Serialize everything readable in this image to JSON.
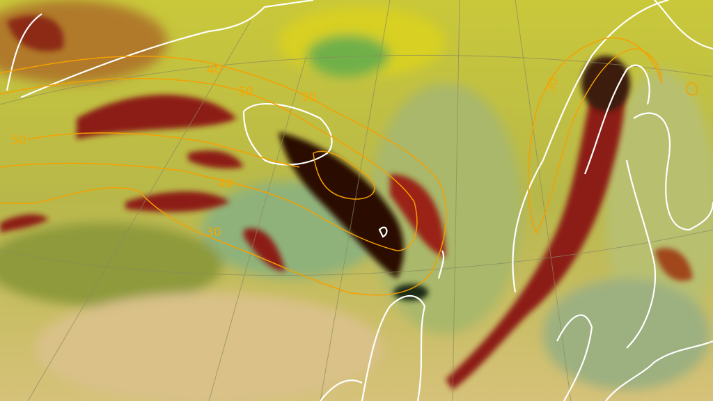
{
  "map": {
    "type": "satellite-airmass-rgb",
    "region": "North Atlantic / Scandinavia",
    "colors": {
      "background": "#c8c24a",
      "jet_red": "#8c1a12",
      "dark_core": "#2a0a06",
      "green": "#6fa84a",
      "contour": "#f5a000",
      "coastline": "#ffffff",
      "graticule": "#8a8a60"
    },
    "contour_labels": [
      {
        "id": "c1",
        "text": "40"
      },
      {
        "id": "c2",
        "text": "50"
      },
      {
        "id": "c3",
        "text": "30"
      },
      {
        "id": "c4",
        "text": "50"
      },
      {
        "id": "c5",
        "text": "40"
      },
      {
        "id": "c6",
        "text": "30"
      },
      {
        "id": "c7",
        "text": "30"
      }
    ]
  }
}
